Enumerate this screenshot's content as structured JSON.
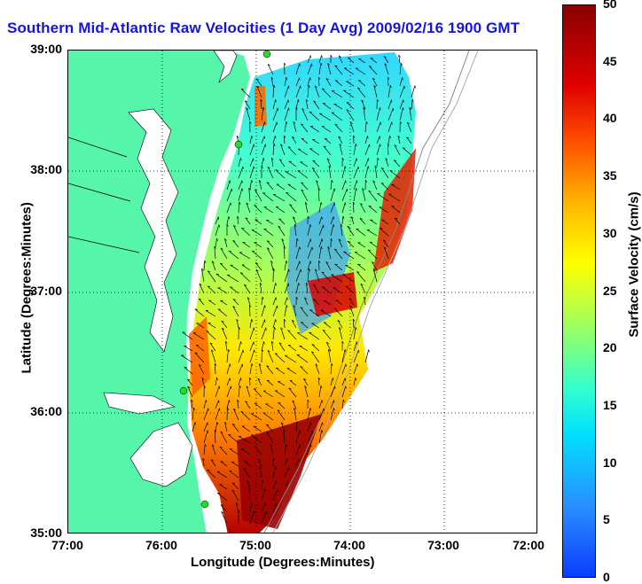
{
  "title": "Southern Mid-Atlantic Raw Velocities (1 Day Avg) 2009/02/16 1900 GMT",
  "axes": {
    "xlabel": "Longitude (Degrees:Minutes)",
    "ylabel": "Latitude (Degrees:Minutes)",
    "xticks": [
      "77:00",
      "76:00",
      "75:00",
      "74:00",
      "73:00",
      "72:00"
    ],
    "yticks": [
      "39:00",
      "38:00",
      "37:00",
      "36:00",
      "35:00"
    ]
  },
  "colorbar": {
    "label": "Surface Velocity (cm/s)",
    "ticks": [
      "50",
      "45",
      "40",
      "35",
      "30",
      "25",
      "20",
      "15",
      "10",
      "5",
      "0"
    ],
    "range": [
      0,
      50
    ]
  },
  "colors": {
    "land": "#55f5aa",
    "title": "#1515e0",
    "site_marker": "#22dd22"
  }
}
